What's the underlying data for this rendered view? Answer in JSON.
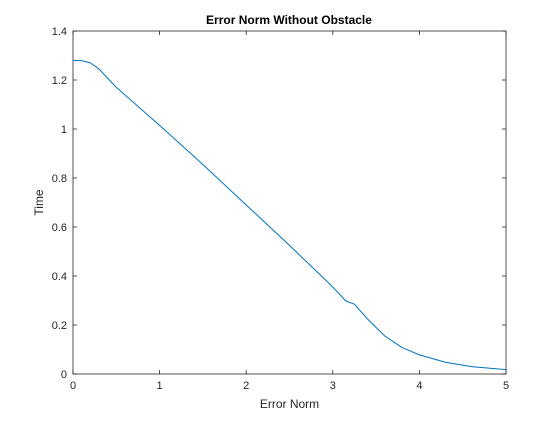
{
  "chart_data": {
    "type": "line",
    "title": "Error Norm Without Obstacle",
    "xlabel": "Error Norm",
    "ylabel": "Time",
    "xlim": [
      0,
      5
    ],
    "ylim": [
      0,
      1.4
    ],
    "grid": false,
    "legend": "none",
    "x_ticks": [
      0,
      1,
      2,
      3,
      4,
      5
    ],
    "x_tick_labels": [
      "0",
      "1",
      "2",
      "3",
      "4",
      "5"
    ],
    "y_ticks": [
      0,
      0.2,
      0.4,
      0.6,
      0.8,
      1.0,
      1.2,
      1.4
    ],
    "y_tick_labels": [
      "0",
      "0.2",
      "0.4",
      "0.6",
      "0.8",
      "1",
      "1.2",
      "1.4"
    ],
    "series": [
      {
        "color": "#0072bd",
        "x": [
          0,
          0.1,
          0.2,
          0.3,
          0.5,
          1.0,
          1.5,
          2.0,
          2.5,
          3.0,
          3.15,
          3.25,
          3.4,
          3.6,
          3.8,
          4.0,
          4.3,
          4.6,
          5.0
        ],
        "y": [
          1.28,
          1.279,
          1.27,
          1.245,
          1.17,
          1.015,
          0.855,
          0.69,
          0.525,
          0.355,
          0.298,
          0.285,
          0.225,
          0.155,
          0.108,
          0.078,
          0.048,
          0.03,
          0.018
        ]
      }
    ]
  }
}
